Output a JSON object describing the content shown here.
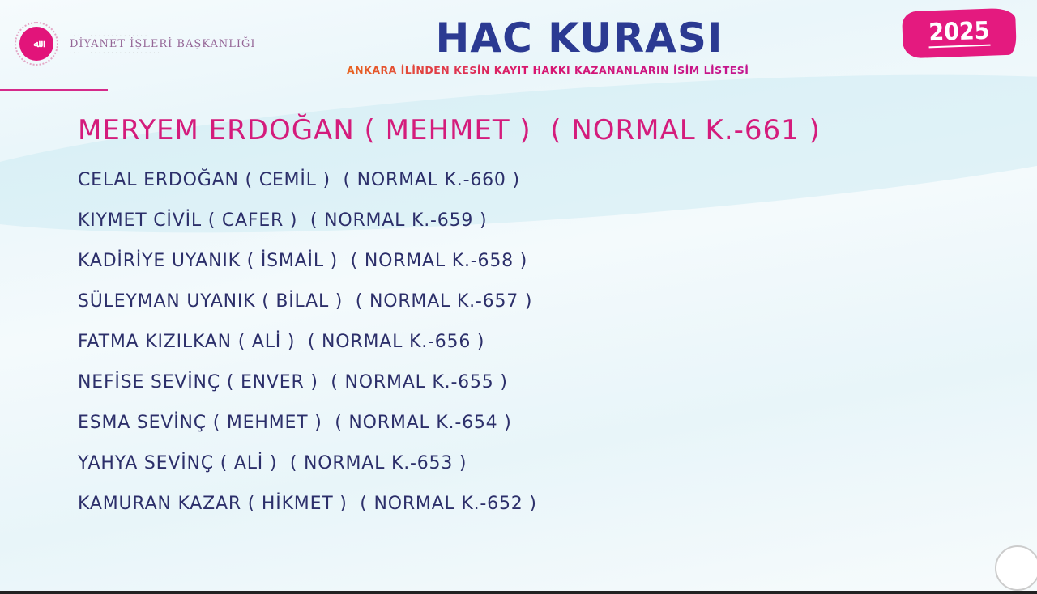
{
  "header": {
    "logo_text": "DİYANET İŞLERİ BAŞKANLIĞI",
    "title": "HAC KURASI",
    "subtitle": "ANKARA İLİNDEN KESİN KAYIT HAKKI KAZANANLARIN İSİM LİSTESİ",
    "year_badge": "2025"
  },
  "colors": {
    "accent": "#e2147a",
    "title": "#2b3a92",
    "text": "#2c2f6a"
  },
  "list": [
    "MERYEM ERDOĞAN ( MEHMET )  ( NORMAL K.-661 )",
    "CELAL ERDOĞAN ( CEMİL )  ( NORMAL K.-660 )",
    "KIYMET CİVİL ( CAFER )  ( NORMAL K.-659 )",
    "KADİRİYE UYANIK ( İSMAİL )  ( NORMAL K.-658 )",
    "SÜLEYMAN UYANIK ( BİLAL )  ( NORMAL K.-657 )",
    "FATMA KIZILKAN ( ALİ )  ( NORMAL K.-656 )",
    "NEFİSE SEVİNÇ ( ENVER )  ( NORMAL K.-655 )",
    "ESMA SEVİNÇ ( MEHMET )  ( NORMAL K.-654 )",
    "YAHYA SEVİNÇ ( ALİ )  ( NORMAL K.-653 )",
    "KAMURAN KAZAR ( HİKMET )  ( NORMAL K.-652 )"
  ]
}
